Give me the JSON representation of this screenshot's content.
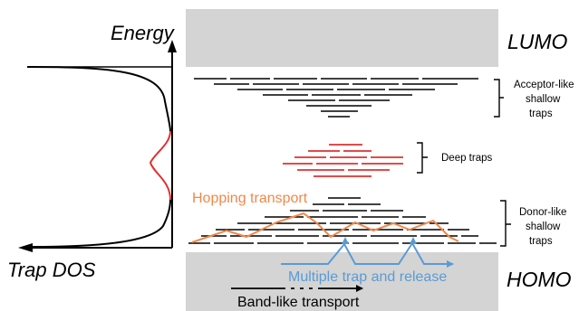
{
  "axis": {
    "y_label": "Energy",
    "x_label": "Trap DOS"
  },
  "bands": {
    "lumo": "LUMO",
    "homo": "HOMO"
  },
  "annotations": {
    "acceptor": [
      "Acceptor-like",
      "shallow",
      "traps"
    ],
    "deep": "Deep traps",
    "donor": [
      "Donor-like",
      "shallow",
      "traps"
    ],
    "hopping": "Hopping transport",
    "multiple_trap": "Multiple trap and release",
    "band_like": "Band-like transport"
  },
  "colors": {
    "band_fill": "#d4d4d4",
    "trap_line": "#000000",
    "deep_trap": "#e03030",
    "hopping": "#f0884a",
    "multiple_trap": "#5a9bd5"
  }
}
